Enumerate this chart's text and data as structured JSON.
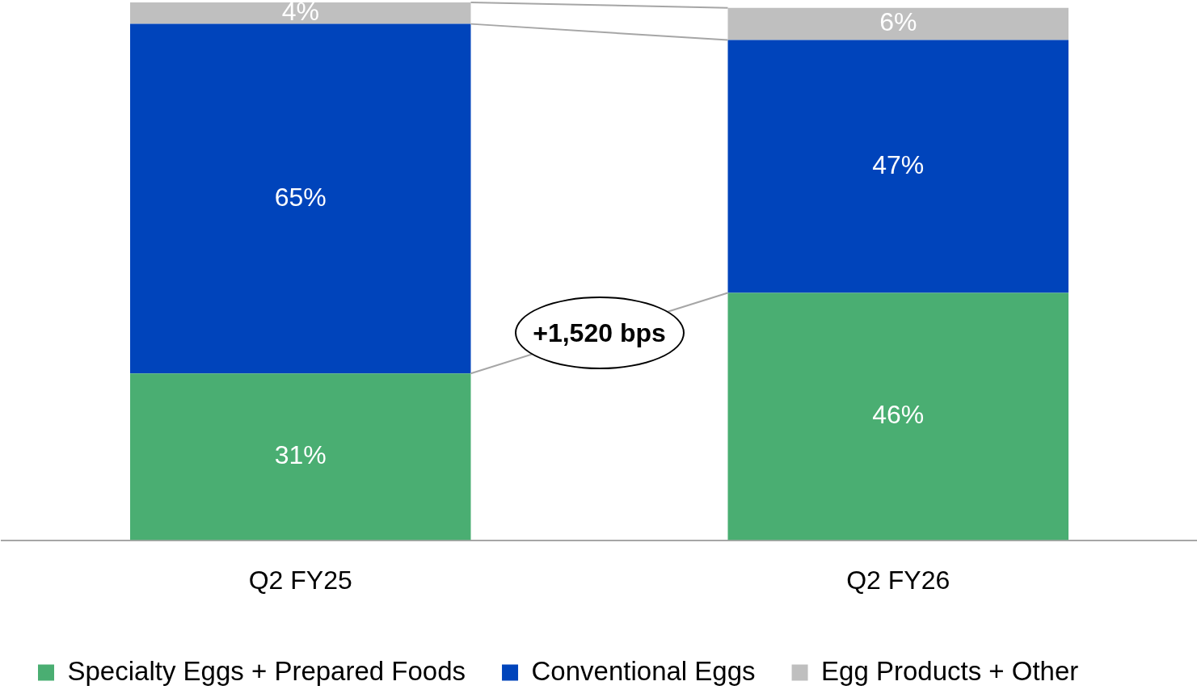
{
  "chart_data": {
    "type": "bar",
    "stacked": true,
    "categories": [
      "Q2 FY25",
      "Q2 FY26"
    ],
    "series": [
      {
        "name": "Specialty Eggs + Prepared Foods",
        "color": "#4aae72",
        "values": [
          31,
          46
        ],
        "value_labels": [
          "31%",
          "46%"
        ]
      },
      {
        "name": "Conventional Eggs",
        "color": "#0044bb",
        "values": [
          65,
          47
        ],
        "value_labels": [
          "65%",
          "47%"
        ]
      },
      {
        "name": "Egg Products + Other",
        "color": "#bfbfbf",
        "values": [
          4,
          6
        ],
        "value_labels": [
          "4%",
          "6%"
        ]
      }
    ],
    "ylim": [
      0,
      100
    ],
    "tick_labels": "x",
    "grid": false,
    "legend": "bottom",
    "annotations": [
      "+1,520 bps"
    ]
  }
}
